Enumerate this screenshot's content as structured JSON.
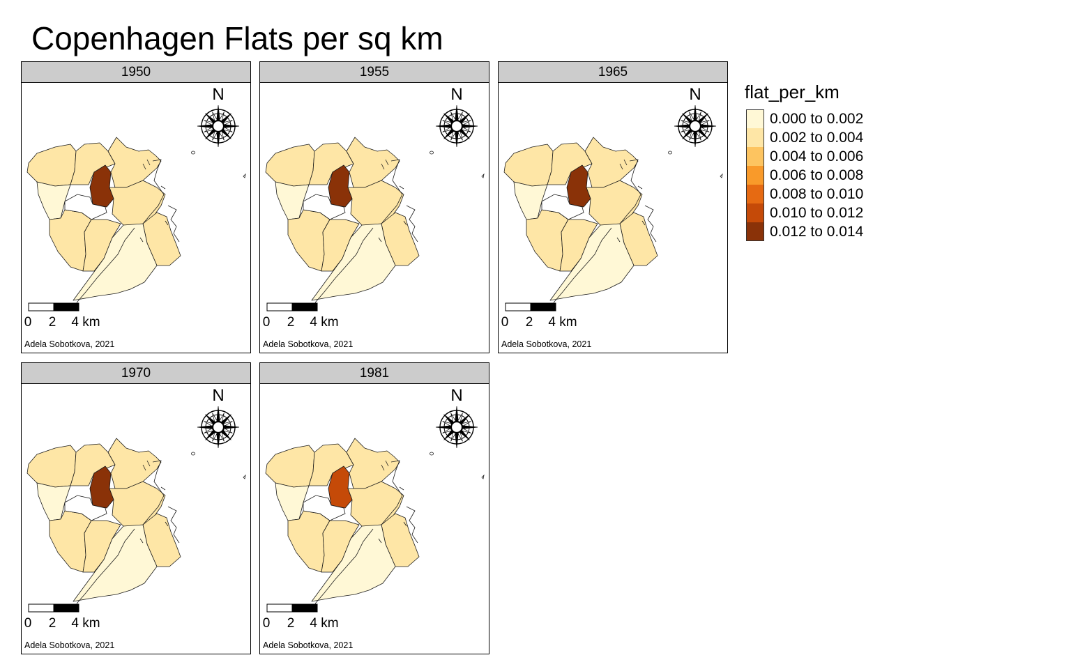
{
  "title": "Copenhagen Flats per sq km",
  "legend": {
    "title": "flat_per_km",
    "items": [
      {
        "label": "0.000 to 0.002",
        "color": "#FFF8D6"
      },
      {
        "label": "0.002 to 0.004",
        "color": "#FEE6A6"
      },
      {
        "label": "0.004 to 0.006",
        "color": "#FDC460"
      },
      {
        "label": "0.006 to 0.008",
        "color": "#F99A2A"
      },
      {
        "label": "0.008 to 0.010",
        "color": "#E66A12"
      },
      {
        "label": "0.010 to 0.012",
        "color": "#C54A08"
      },
      {
        "label": "0.012 to 0.014",
        "color": "#8A3208"
      }
    ]
  },
  "no_data_color": "#FFFFFF",
  "panels": [
    {
      "year": "1950",
      "district_classes": [
        1,
        1,
        0,
        6,
        1,
        1,
        1,
        1,
        1,
        0
      ],
      "scale_labels": [
        "0",
        "2",
        "4 km"
      ],
      "north_label": "N",
      "credit": "Adela Sobotkova, 2021"
    },
    {
      "year": "1955",
      "district_classes": [
        1,
        1,
        0,
        6,
        1,
        1,
        1,
        1,
        1,
        0
      ],
      "scale_labels": [
        "0",
        "2",
        "4 km"
      ],
      "north_label": "N",
      "credit": "Adela Sobotkova, 2021"
    },
    {
      "year": "1965",
      "district_classes": [
        1,
        1,
        0,
        6,
        1,
        1,
        1,
        1,
        1,
        0
      ],
      "scale_labels": [
        "0",
        "2",
        "4 km"
      ],
      "north_label": "N",
      "credit": "Adela Sobotkova, 2021"
    },
    {
      "year": "1970",
      "district_classes": [
        1,
        1,
        0,
        6,
        1,
        1,
        1,
        1,
        1,
        0
      ],
      "scale_labels": [
        "0",
        "2",
        "4 km"
      ],
      "north_label": "N",
      "credit": "Adela Sobotkova, 2021"
    },
    {
      "year": "1981",
      "district_classes": [
        1,
        1,
        0,
        5,
        1,
        1,
        1,
        1,
        1,
        0
      ],
      "scale_labels": [
        "0",
        "2",
        "4 km"
      ],
      "north_label": "N",
      "credit": "Adela Sobotkova, 2021"
    }
  ]
}
